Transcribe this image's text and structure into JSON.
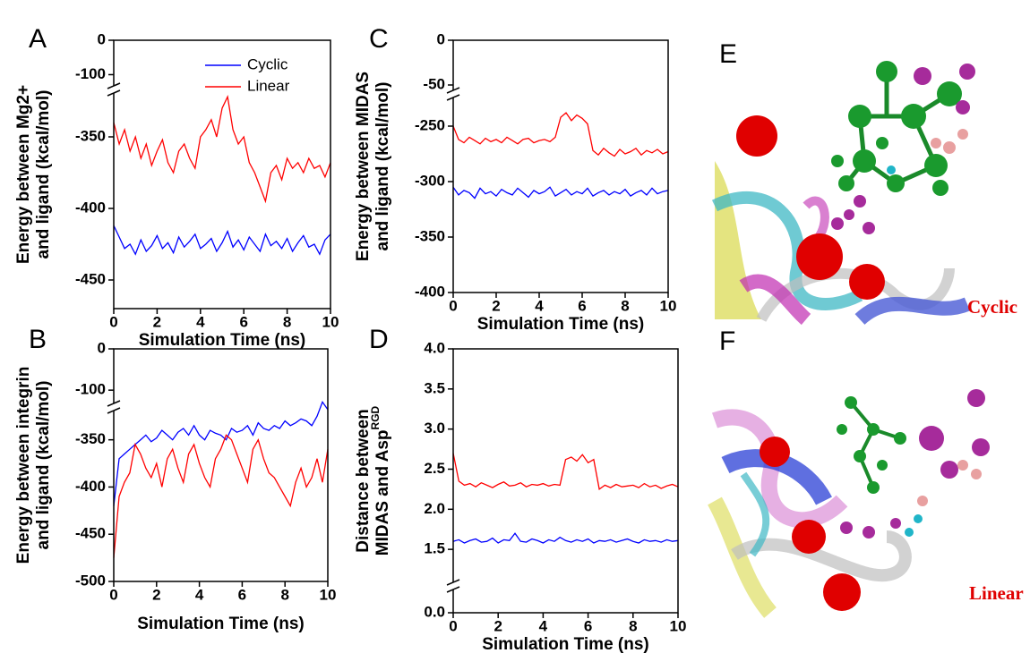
{
  "chart_data": [
    {
      "type": "line",
      "panel": "A",
      "ylabel": [
        "Energy between Mg2+",
        "and ligand (kcal/mol)"
      ],
      "xlabel": "Simulation Time (ns)",
      "xlim": [
        0,
        10
      ],
      "xticks": [
        0,
        2,
        4,
        6,
        8,
        10
      ],
      "ylim": [
        -470,
        0
      ],
      "axis_break": [
        -320,
        -130
      ],
      "yticks": [
        0,
        -100,
        -350,
        -400,
        -450
      ],
      "legend": "upper right",
      "x": [
        0,
        0.25,
        0.5,
        0.75,
        1,
        1.25,
        1.5,
        1.75,
        2,
        2.25,
        2.5,
        2.75,
        3,
        3.25,
        3.5,
        3.75,
        4,
        4.25,
        4.5,
        4.75,
        5,
        5.25,
        5.5,
        5.75,
        6,
        6.25,
        6.5,
        6.75,
        7,
        7.25,
        7.5,
        7.75,
        8,
        8.25,
        8.5,
        8.75,
        9,
        9.25,
        9.5,
        9.75,
        10
      ],
      "series": [
        {
          "name": "Cyclic",
          "color": "#0000ff",
          "values": [
            -412,
            -420,
            -428,
            -425,
            -432,
            -422,
            -430,
            -426,
            -419,
            -428,
            -424,
            -431,
            -420,
            -427,
            -423,
            -418,
            -428,
            -425,
            -421,
            -430,
            -424,
            -416,
            -427,
            -422,
            -429,
            -420,
            -425,
            -430,
            -418,
            -426,
            -423,
            -428,
            -421,
            -430,
            -424,
            -419,
            -427,
            -425,
            -432,
            -422,
            -418
          ]
        },
        {
          "name": "Linear",
          "color": "#ff0000",
          "values": [
            -340,
            -355,
            -345,
            -360,
            -350,
            -365,
            -355,
            -370,
            -360,
            -352,
            -368,
            -375,
            -360,
            -355,
            -365,
            -372,
            -350,
            -345,
            -338,
            -350,
            -330,
            -322,
            -345,
            -355,
            -350,
            -368,
            -375,
            -385,
            -395,
            -375,
            -370,
            -380,
            -365,
            -372,
            -368,
            -375,
            -365,
            -372,
            -370,
            -378,
            -368
          ]
        }
      ]
    },
    {
      "type": "line",
      "panel": "B",
      "ylabel": [
        "Energy between integrin",
        "and ligand (kcal/mol)"
      ],
      "xlabel": "Simulation Time (ns)",
      "xlim": [
        0,
        10
      ],
      "xticks": [
        0,
        2,
        4,
        6,
        8,
        10
      ],
      "ylim": [
        -500,
        0
      ],
      "axis_break": [
        -320,
        -130
      ],
      "yticks": [
        0,
        -100,
        -350,
        -400,
        -450,
        -500
      ],
      "x": [
        0,
        0.25,
        0.5,
        0.75,
        1,
        1.25,
        1.5,
        1.75,
        2,
        2.25,
        2.5,
        2.75,
        3,
        3.25,
        3.5,
        3.75,
        4,
        4.25,
        4.5,
        4.75,
        5,
        5.25,
        5.5,
        5.75,
        6,
        6.25,
        6.5,
        6.75,
        7,
        7.25,
        7.5,
        7.75,
        8,
        8.25,
        8.5,
        8.75,
        9,
        9.25,
        9.5,
        9.75,
        10
      ],
      "series": [
        {
          "name": "Cyclic",
          "color": "#0000ff",
          "values": [
            -420,
            -370,
            -365,
            -360,
            -355,
            -350,
            -345,
            -352,
            -348,
            -340,
            -345,
            -350,
            -342,
            -338,
            -345,
            -335,
            -345,
            -350,
            -340,
            -343,
            -345,
            -350,
            -338,
            -342,
            -340,
            -335,
            -345,
            -332,
            -338,
            -340,
            -335,
            -338,
            -330,
            -335,
            -332,
            -328,
            -330,
            -335,
            -325,
            -310,
            -318
          ]
        },
        {
          "name": "Linear",
          "color": "#ff0000",
          "values": [
            -475,
            -410,
            -395,
            -385,
            -355,
            -365,
            -380,
            -390,
            -375,
            -400,
            -370,
            -360,
            -380,
            -395,
            -365,
            -355,
            -375,
            -390,
            -400,
            -370,
            -360,
            -345,
            -350,
            -365,
            -380,
            -395,
            -360,
            -350,
            -370,
            -385,
            -390,
            -400,
            -410,
            -420,
            -395,
            -380,
            -400,
            -390,
            -370,
            -395,
            -360
          ]
        }
      ]
    },
    {
      "type": "line",
      "panel": "C",
      "ylabel": [
        "Energy between MIDAS",
        "and ligand (kcal/mol)"
      ],
      "xlabel": "Simulation Time (ns)",
      "xlim": [
        0,
        10
      ],
      "xticks": [
        0,
        2,
        4,
        6,
        8,
        10
      ],
      "ylim": [
        -400,
        0
      ],
      "axis_break": [
        -225,
        -55
      ],
      "yticks": [
        0,
        -50,
        -250,
        -300,
        -350,
        -400
      ],
      "x": [
        0,
        0.25,
        0.5,
        0.75,
        1,
        1.25,
        1.5,
        1.75,
        2,
        2.25,
        2.5,
        2.75,
        3,
        3.25,
        3.5,
        3.75,
        4,
        4.25,
        4.5,
        4.75,
        5,
        5.25,
        5.5,
        5.75,
        6,
        6.25,
        6.5,
        6.75,
        7,
        7.25,
        7.5,
        7.75,
        8,
        8.25,
        8.5,
        8.75,
        9,
        9.25,
        9.5,
        9.75,
        10
      ],
      "series": [
        {
          "name": "Cyclic",
          "color": "#0000ff",
          "values": [
            -305,
            -312,
            -308,
            -310,
            -315,
            -306,
            -311,
            -309,
            -313,
            -307,
            -310,
            -312,
            -306,
            -310,
            -314,
            -308,
            -311,
            -309,
            -305,
            -313,
            -310,
            -307,
            -312,
            -309,
            -311,
            -306,
            -313,
            -310,
            -308,
            -312,
            -309,
            -311,
            -307,
            -313,
            -310,
            -308,
            -312,
            -306,
            -311,
            -309,
            -308
          ]
        },
        {
          "name": "Linear",
          "color": "#ff0000",
          "values": [
            -250,
            -262,
            -265,
            -260,
            -263,
            -266,
            -261,
            -264,
            -262,
            -265,
            -260,
            -263,
            -266,
            -262,
            -261,
            -265,
            -263,
            -262,
            -264,
            -260,
            -242,
            -238,
            -245,
            -240,
            -243,
            -248,
            -272,
            -276,
            -270,
            -274,
            -277,
            -271,
            -275,
            -273,
            -270,
            -276,
            -272,
            -274,
            -271,
            -275,
            -273
          ]
        }
      ]
    },
    {
      "type": "line",
      "panel": "D",
      "ylabel": [
        "Distance between",
        "MIDAS and Asp"
      ],
      "ylabel_sup": "RGD",
      "xlabel": "Simulation Time (ns)",
      "xlim": [
        0,
        10
      ],
      "xticks": [
        0,
        2,
        4,
        6,
        8,
        10
      ],
      "ylim": [
        0,
        4
      ],
      "axis_break": [
        0.2,
        1.1
      ],
      "yticks": [
        {
          "value": 0,
          "label": "0.0"
        },
        {
          "value": 1.5,
          "label": "1.5"
        },
        {
          "value": 2,
          "label": "2.0"
        },
        {
          "value": 2.5,
          "label": "2.5"
        },
        {
          "value": 3,
          "label": "3.0"
        },
        {
          "value": 3.5,
          "label": "3.5"
        },
        {
          "value": 4,
          "label": "4.0"
        }
      ],
      "x": [
        0,
        0.25,
        0.5,
        0.75,
        1,
        1.25,
        1.5,
        1.75,
        2,
        2.25,
        2.5,
        2.75,
        3,
        3.25,
        3.5,
        3.75,
        4,
        4.25,
        4.5,
        4.75,
        5,
        5.25,
        5.5,
        5.75,
        6,
        6.25,
        6.5,
        6.75,
        7,
        7.25,
        7.5,
        7.75,
        8,
        8.25,
        8.5,
        8.75,
        9,
        9.25,
        9.5,
        9.75,
        10
      ],
      "series": [
        {
          "name": "Cyclic",
          "color": "#0000ff",
          "values": [
            1.6,
            1.62,
            1.58,
            1.61,
            1.63,
            1.59,
            1.6,
            1.64,
            1.58,
            1.62,
            1.61,
            1.7,
            1.6,
            1.59,
            1.63,
            1.61,
            1.58,
            1.62,
            1.6,
            1.65,
            1.61,
            1.59,
            1.62,
            1.6,
            1.63,
            1.58,
            1.61,
            1.6,
            1.62,
            1.59,
            1.61,
            1.63,
            1.6,
            1.58,
            1.62,
            1.6,
            1.61,
            1.59,
            1.62,
            1.6,
            1.61
          ]
        },
        {
          "name": "Linear",
          "color": "#ff0000",
          "values": [
            2.7,
            2.35,
            2.3,
            2.32,
            2.28,
            2.33,
            2.3,
            2.27,
            2.31,
            2.34,
            2.29,
            2.3,
            2.33,
            2.28,
            2.31,
            2.3,
            2.32,
            2.29,
            2.31,
            2.3,
            2.62,
            2.65,
            2.6,
            2.68,
            2.58,
            2.62,
            2.25,
            2.3,
            2.27,
            2.31,
            2.28,
            2.29,
            2.3,
            2.27,
            2.32,
            2.28,
            2.3,
            2.26,
            2.29,
            2.31,
            2.28
          ]
        }
      ]
    }
  ],
  "images": [
    {
      "panel": "E",
      "caption": "Cyclic"
    },
    {
      "panel": "F",
      "caption": "Linear"
    }
  ]
}
